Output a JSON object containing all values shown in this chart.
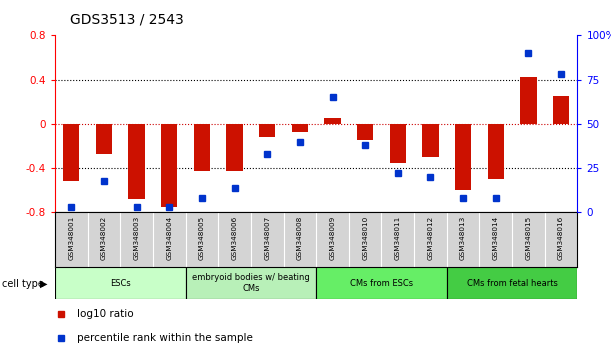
{
  "title": "GDS3513 / 2543",
  "samples": [
    "GSM348001",
    "GSM348002",
    "GSM348003",
    "GSM348004",
    "GSM348005",
    "GSM348006",
    "GSM348007",
    "GSM348008",
    "GSM348009",
    "GSM348010",
    "GSM348011",
    "GSM348012",
    "GSM348013",
    "GSM348014",
    "GSM348015",
    "GSM348016"
  ],
  "log10_ratio": [
    -0.52,
    -0.27,
    -0.68,
    -0.75,
    -0.43,
    -0.43,
    -0.12,
    -0.07,
    0.05,
    -0.15,
    -0.35,
    -0.3,
    -0.6,
    -0.5,
    0.42,
    0.25
  ],
  "percentile_rank": [
    3,
    18,
    3,
    3,
    8,
    14,
    33,
    40,
    65,
    38,
    22,
    20,
    8,
    8,
    90,
    78
  ],
  "cell_type_groups": [
    {
      "label": "ESCs",
      "start": 0,
      "end": 3,
      "color": "#c8ffc8"
    },
    {
      "label": "embryoid bodies w/ beating\nCMs",
      "start": 4,
      "end": 7,
      "color": "#b8f0b8"
    },
    {
      "label": "CMs from ESCs",
      "start": 8,
      "end": 11,
      "color": "#66ee66"
    },
    {
      "label": "CMs from fetal hearts",
      "start": 12,
      "end": 15,
      "color": "#44cc44"
    }
  ],
  "ylim_left": [
    -0.8,
    0.8
  ],
  "ylim_right": [
    0,
    100
  ],
  "bar_color": "#cc1100",
  "dot_color": "#0033cc",
  "zero_line_color": "#cc0000",
  "yticks_left": [
    -0.8,
    -0.4,
    0.0,
    0.4,
    0.8
  ],
  "ytick_labels_left": [
    "-0.8",
    "-0.4",
    "0",
    "0.4",
    "0.8"
  ],
  "yticks_right": [
    0,
    25,
    50,
    75,
    100
  ],
  "ytick_labels_right": [
    "0",
    "25",
    "50",
    "75",
    "100%"
  ],
  "legend_items": [
    "log10 ratio",
    "percentile rank within the sample"
  ],
  "label_bg_color": "#d4d4d4",
  "cell_type_label": "cell type"
}
